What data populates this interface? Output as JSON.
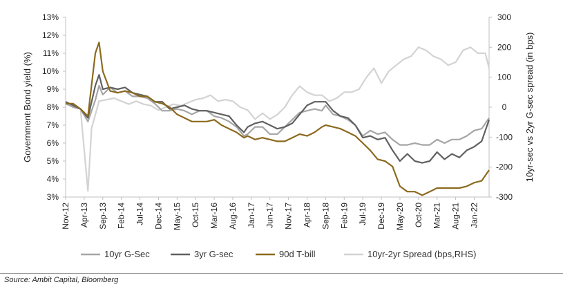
{
  "chart_data": {
    "type": "line",
    "title": "",
    "ylabel": "Government Bond yield (%)",
    "y2label": "10yr-sec vs 2yr G-sec spread (in bps)",
    "ylim": [
      3,
      13
    ],
    "y2lim": [
      -300,
      300
    ],
    "yticks": [
      "3%",
      "4%",
      "5%",
      "6%",
      "7%",
      "8%",
      "9%",
      "10%",
      "11%",
      "12%",
      "13%"
    ],
    "y2ticks": [
      "300",
      "200",
      "100",
      "0",
      "-100",
      "-200",
      "-300"
    ],
    "x_start": "2012-11",
    "x_end": "2022-05",
    "xticks": [
      "Nov-12",
      "Apr-13",
      "Sep-13",
      "Feb-14",
      "Jul-14",
      "Dec-14",
      "May-15",
      "Oct-15",
      "Mar-16",
      "Aug-16",
      "Jan-17",
      "Jun-17",
      "Nov-17",
      "Apr-18",
      "Sep-18",
      "Feb-19",
      "Jul-19",
      "Dec-19",
      "May-20",
      "Oct-20",
      "Mar-21",
      "Aug-21",
      "Jan-22"
    ],
    "grid": false,
    "legend_position": "bottom",
    "source": "Source: Ambit Capital, Bloomberg",
    "series": [
      {
        "name": "10yr G-Sec",
        "axis": "left",
        "color": "#a6a6a6",
        "points": [
          [
            "2012-11",
            8.2
          ],
          [
            "2013-01",
            8.0
          ],
          [
            "2013-03",
            7.9
          ],
          [
            "2013-05",
            7.2
          ],
          [
            "2013-07",
            8.4
          ],
          [
            "2013-08",
            9.2
          ],
          [
            "2013-09",
            8.7
          ],
          [
            "2013-11",
            9.1
          ],
          [
            "2014-01",
            8.8
          ],
          [
            "2014-03",
            8.9
          ],
          [
            "2014-05",
            8.6
          ],
          [
            "2014-07",
            8.6
          ],
          [
            "2014-09",
            8.5
          ],
          [
            "2014-11",
            8.2
          ],
          [
            "2015-01",
            7.8
          ],
          [
            "2015-03",
            7.8
          ],
          [
            "2015-05",
            7.9
          ],
          [
            "2015-07",
            7.8
          ],
          [
            "2015-09",
            7.6
          ],
          [
            "2015-11",
            7.8
          ],
          [
            "2016-01",
            7.8
          ],
          [
            "2016-03",
            7.5
          ],
          [
            "2016-05",
            7.4
          ],
          [
            "2016-07",
            7.2
          ],
          [
            "2016-09",
            6.9
          ],
          [
            "2016-11",
            6.4
          ],
          [
            "2016-12",
            6.5
          ],
          [
            "2017-02",
            6.9
          ],
          [
            "2017-04",
            6.9
          ],
          [
            "2017-06",
            6.5
          ],
          [
            "2017-08",
            6.5
          ],
          [
            "2017-10",
            6.9
          ],
          [
            "2017-12",
            7.3
          ],
          [
            "2018-02",
            7.7
          ],
          [
            "2018-04",
            7.8
          ],
          [
            "2018-06",
            7.9
          ],
          [
            "2018-08",
            7.8
          ],
          [
            "2018-09",
            8.1
          ],
          [
            "2018-11",
            7.6
          ],
          [
            "2019-01",
            7.5
          ],
          [
            "2019-03",
            7.3
          ],
          [
            "2019-05",
            7.0
          ],
          [
            "2019-07",
            6.4
          ],
          [
            "2019-09",
            6.7
          ],
          [
            "2019-11",
            6.5
          ],
          [
            "2020-01",
            6.6
          ],
          [
            "2020-03",
            6.2
          ],
          [
            "2020-05",
            5.9
          ],
          [
            "2020-07",
            5.9
          ],
          [
            "2020-09",
            6.0
          ],
          [
            "2020-11",
            5.9
          ],
          [
            "2021-01",
            5.9
          ],
          [
            "2021-03",
            6.2
          ],
          [
            "2021-05",
            6.0
          ],
          [
            "2021-07",
            6.2
          ],
          [
            "2021-09",
            6.2
          ],
          [
            "2021-11",
            6.4
          ],
          [
            "2022-01",
            6.7
          ],
          [
            "2022-03",
            6.8
          ],
          [
            "2022-05",
            7.4
          ]
        ]
      },
      {
        "name": "3yr G-sec",
        "axis": "left",
        "color": "#606060",
        "points": [
          [
            "2012-11",
            8.3
          ],
          [
            "2013-01",
            8.1
          ],
          [
            "2013-03",
            7.9
          ],
          [
            "2013-05",
            7.4
          ],
          [
            "2013-07",
            9.2
          ],
          [
            "2013-08",
            9.8
          ],
          [
            "2013-09",
            9.0
          ],
          [
            "2013-11",
            9.1
          ],
          [
            "2014-01",
            9.0
          ],
          [
            "2014-03",
            9.1
          ],
          [
            "2014-05",
            8.8
          ],
          [
            "2014-07",
            8.7
          ],
          [
            "2014-09",
            8.6
          ],
          [
            "2014-11",
            8.3
          ],
          [
            "2015-01",
            8.3
          ],
          [
            "2015-03",
            7.9
          ],
          [
            "2015-05",
            8.0
          ],
          [
            "2015-07",
            8.1
          ],
          [
            "2015-09",
            7.9
          ],
          [
            "2015-11",
            7.8
          ],
          [
            "2016-01",
            7.8
          ],
          [
            "2016-03",
            7.7
          ],
          [
            "2016-05",
            7.6
          ],
          [
            "2016-07",
            7.5
          ],
          [
            "2016-09",
            7.0
          ],
          [
            "2016-11",
            6.6
          ],
          [
            "2016-12",
            6.9
          ],
          [
            "2017-02",
            7.1
          ],
          [
            "2017-04",
            7.2
          ],
          [
            "2017-06",
            7.0
          ],
          [
            "2017-08",
            6.8
          ],
          [
            "2017-10",
            6.9
          ],
          [
            "2017-12",
            7.1
          ],
          [
            "2018-02",
            7.6
          ],
          [
            "2018-04",
            8.1
          ],
          [
            "2018-06",
            8.3
          ],
          [
            "2018-08",
            8.3
          ],
          [
            "2018-09",
            8.3
          ],
          [
            "2018-11",
            7.8
          ],
          [
            "2019-01",
            7.5
          ],
          [
            "2019-03",
            7.4
          ],
          [
            "2019-05",
            7.0
          ],
          [
            "2019-07",
            6.3
          ],
          [
            "2019-09",
            6.4
          ],
          [
            "2019-11",
            6.2
          ],
          [
            "2020-01",
            6.3
          ],
          [
            "2020-03",
            5.6
          ],
          [
            "2020-05",
            5.0
          ],
          [
            "2020-07",
            5.4
          ],
          [
            "2020-09",
            5.0
          ],
          [
            "2020-11",
            4.9
          ],
          [
            "2021-01",
            5.0
          ],
          [
            "2021-03",
            5.5
          ],
          [
            "2021-05",
            5.1
          ],
          [
            "2021-07",
            5.4
          ],
          [
            "2021-09",
            5.2
          ],
          [
            "2021-11",
            5.6
          ],
          [
            "2022-01",
            5.8
          ],
          [
            "2022-03",
            6.1
          ],
          [
            "2022-05",
            7.3
          ]
        ]
      },
      {
        "name": "90d T-bill",
        "axis": "left",
        "color": "#8c6a1e",
        "points": [
          [
            "2012-11",
            8.2
          ],
          [
            "2013-01",
            8.2
          ],
          [
            "2013-03",
            7.9
          ],
          [
            "2013-05",
            7.5
          ],
          [
            "2013-07",
            11.0
          ],
          [
            "2013-08",
            11.6
          ],
          [
            "2013-09",
            10.0
          ],
          [
            "2013-11",
            8.9
          ],
          [
            "2014-01",
            8.8
          ],
          [
            "2014-03",
            8.9
          ],
          [
            "2014-05",
            8.8
          ],
          [
            "2014-07",
            8.6
          ],
          [
            "2014-09",
            8.6
          ],
          [
            "2014-11",
            8.3
          ],
          [
            "2015-01",
            8.2
          ],
          [
            "2015-03",
            8.0
          ],
          [
            "2015-05",
            7.6
          ],
          [
            "2015-07",
            7.4
          ],
          [
            "2015-09",
            7.2
          ],
          [
            "2015-11",
            7.2
          ],
          [
            "2016-01",
            7.2
          ],
          [
            "2016-03",
            7.3
          ],
          [
            "2016-05",
            7.0
          ],
          [
            "2016-07",
            6.8
          ],
          [
            "2016-09",
            6.6
          ],
          [
            "2016-11",
            6.3
          ],
          [
            "2016-12",
            6.4
          ],
          [
            "2017-02",
            6.2
          ],
          [
            "2017-04",
            6.3
          ],
          [
            "2017-06",
            6.2
          ],
          [
            "2017-08",
            6.1
          ],
          [
            "2017-10",
            6.1
          ],
          [
            "2017-12",
            6.3
          ],
          [
            "2018-02",
            6.5
          ],
          [
            "2018-04",
            6.4
          ],
          [
            "2018-06",
            6.6
          ],
          [
            "2018-08",
            6.9
          ],
          [
            "2018-09",
            7.0
          ],
          [
            "2018-11",
            6.9
          ],
          [
            "2019-01",
            6.8
          ],
          [
            "2019-03",
            6.6
          ],
          [
            "2019-05",
            6.4
          ],
          [
            "2019-07",
            6.0
          ],
          [
            "2019-09",
            5.6
          ],
          [
            "2019-11",
            5.1
          ],
          [
            "2020-01",
            5.0
          ],
          [
            "2020-03",
            4.7
          ],
          [
            "2020-05",
            3.6
          ],
          [
            "2020-07",
            3.3
          ],
          [
            "2020-09",
            3.3
          ],
          [
            "2020-11",
            3.1
          ],
          [
            "2021-01",
            3.3
          ],
          [
            "2021-03",
            3.5
          ],
          [
            "2021-05",
            3.5
          ],
          [
            "2021-07",
            3.5
          ],
          [
            "2021-09",
            3.5
          ],
          [
            "2021-11",
            3.6
          ],
          [
            "2022-01",
            3.8
          ],
          [
            "2022-03",
            3.9
          ],
          [
            "2022-05",
            4.5
          ]
        ]
      },
      {
        "name": "10yr-2yr Spread (bps,RHS)",
        "axis": "right",
        "color": "#d3d3d3",
        "points": [
          [
            "2012-11",
            10
          ],
          [
            "2013-01",
            5
          ],
          [
            "2013-03",
            -5
          ],
          [
            "2013-05",
            -280
          ],
          [
            "2013-06",
            -70
          ],
          [
            "2013-08",
            20
          ],
          [
            "2013-10",
            25
          ],
          [
            "2013-12",
            30
          ],
          [
            "2014-02",
            20
          ],
          [
            "2014-04",
            10
          ],
          [
            "2014-06",
            20
          ],
          [
            "2014-08",
            10
          ],
          [
            "2014-10",
            5
          ],
          [
            "2014-12",
            -10
          ],
          [
            "2015-02",
            0
          ],
          [
            "2015-04",
            10
          ],
          [
            "2015-06",
            5
          ],
          [
            "2015-08",
            15
          ],
          [
            "2015-10",
            25
          ],
          [
            "2015-12",
            30
          ],
          [
            "2016-02",
            40
          ],
          [
            "2016-04",
            20
          ],
          [
            "2016-06",
            25
          ],
          [
            "2016-08",
            20
          ],
          [
            "2016-10",
            0
          ],
          [
            "2016-12",
            -10
          ],
          [
            "2017-02",
            -40
          ],
          [
            "2017-04",
            -20
          ],
          [
            "2017-06",
            -40
          ],
          [
            "2017-08",
            -25
          ],
          [
            "2017-10",
            0
          ],
          [
            "2017-12",
            40
          ],
          [
            "2018-02",
            70
          ],
          [
            "2018-04",
            50
          ],
          [
            "2018-06",
            40
          ],
          [
            "2018-08",
            40
          ],
          [
            "2018-10",
            20
          ],
          [
            "2018-12",
            30
          ],
          [
            "2019-02",
            50
          ],
          [
            "2019-04",
            50
          ],
          [
            "2019-06",
            60
          ],
          [
            "2019-08",
            100
          ],
          [
            "2019-10",
            130
          ],
          [
            "2019-12",
            80
          ],
          [
            "2020-02",
            120
          ],
          [
            "2020-04",
            140
          ],
          [
            "2020-06",
            160
          ],
          [
            "2020-08",
            170
          ],
          [
            "2020-10",
            200
          ],
          [
            "2020-12",
            190
          ],
          [
            "2021-02",
            170
          ],
          [
            "2021-04",
            160
          ],
          [
            "2021-06",
            140
          ],
          [
            "2021-08",
            150
          ],
          [
            "2021-10",
            190
          ],
          [
            "2021-12",
            200
          ],
          [
            "2022-02",
            180
          ],
          [
            "2022-04",
            180
          ],
          [
            "2022-05",
            130
          ]
        ]
      }
    ]
  }
}
